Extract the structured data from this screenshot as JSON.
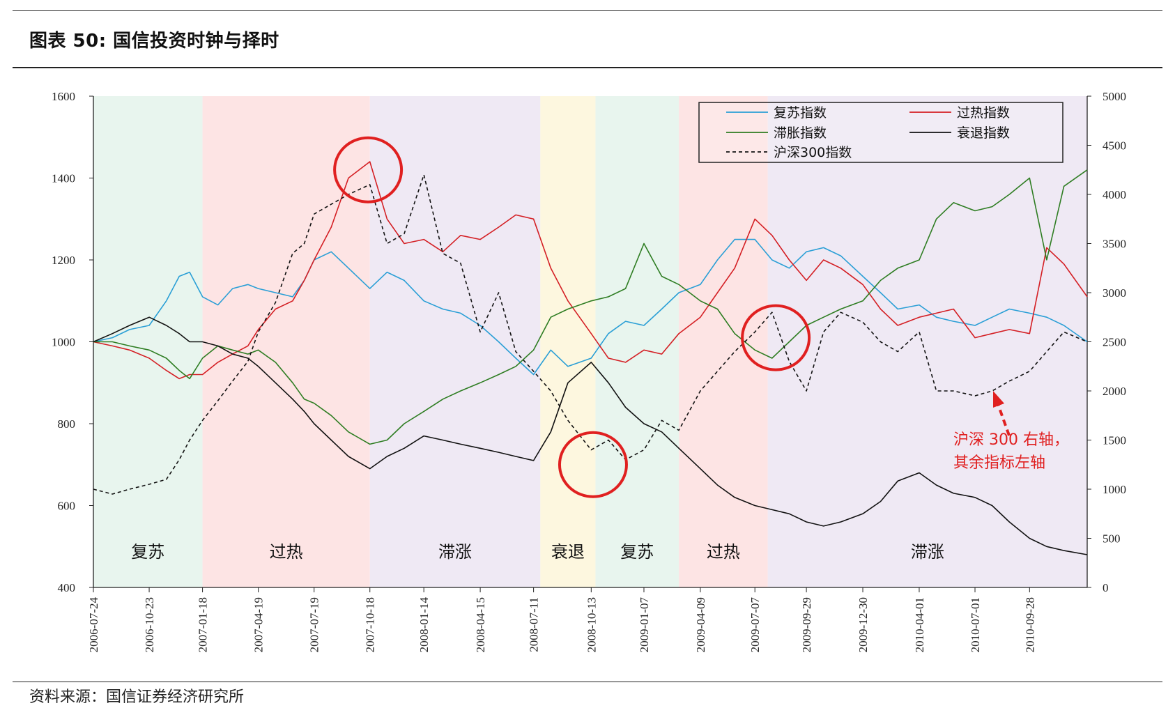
{
  "page": {
    "title": "图表 50:  国信投资时钟与择时",
    "source": "资料来源：国信证券经济研究所"
  },
  "chart_data": {
    "type": "line",
    "y_left": {
      "min": 400,
      "max": 1600,
      "ticks": [
        400,
        600,
        800,
        1000,
        1200,
        1400,
        1600
      ]
    },
    "y_right": {
      "min": 0,
      "max": 5000,
      "ticks": [
        0,
        500,
        1000,
        1500,
        2000,
        2500,
        3000,
        3500,
        4000,
        4500,
        5000
      ]
    },
    "x_range": [
      "2006-07-24",
      "2010-12-31"
    ],
    "x_ticks": [
      "2006-07-24",
      "2006-10-23",
      "2007-01-18",
      "2007-04-19",
      "2007-07-19",
      "2007-10-18",
      "2008-01-14",
      "2008-04-15",
      "2008-07-11",
      "2008-10-13",
      "2009-01-07",
      "2009-04-09",
      "2009-07-07",
      "2009-09-29",
      "2009-12-30",
      "2010-04-01",
      "2010-07-01",
      "2010-09-28"
    ],
    "phases": [
      {
        "label": "复苏",
        "start": "2006-07-24",
        "end": "2007-01-18",
        "color": "#e8f5ee"
      },
      {
        "label": "过热",
        "start": "2007-01-18",
        "end": "2007-10-18",
        "color": "#fde4e4"
      },
      {
        "label": "滞涨",
        "start": "2007-10-18",
        "end": "2008-07-22",
        "color": "#efe9f4"
      },
      {
        "label": "衰退",
        "start": "2008-07-22",
        "end": "2008-10-20",
        "color": "#fdf7df"
      },
      {
        "label": "复苏",
        "start": "2008-10-20",
        "end": "2009-03-05",
        "color": "#e8f5ee"
      },
      {
        "label": "过热",
        "start": "2009-03-05",
        "end": "2009-07-28",
        "color": "#fde4e4"
      },
      {
        "label": "滞涨",
        "start": "2009-07-28",
        "end": "2010-12-31",
        "color": "#efe9f4"
      }
    ],
    "legend": {
      "position": "top-right"
    },
    "series": [
      {
        "name": "复苏指数",
        "axis": "left",
        "color": "#2a9fd6",
        "style": "solid",
        "x": [
          "2006-07-24",
          "2006-08-24",
          "2006-09-21",
          "2006-10-23",
          "2006-11-20",
          "2006-12-11",
          "2006-12-28",
          "2007-01-18",
          "2007-02-12",
          "2007-03-08",
          "2007-04-02",
          "2007-04-19",
          "2007-05-17",
          "2007-06-14",
          "2007-07-03",
          "2007-07-19",
          "2007-08-16",
          "2007-09-13",
          "2007-10-18",
          "2007-11-15",
          "2007-12-13",
          "2008-01-14",
          "2008-02-14",
          "2008-03-14",
          "2008-04-15",
          "2008-05-15",
          "2008-06-12",
          "2008-07-11",
          "2008-08-08",
          "2008-09-05",
          "2008-10-13",
          "2008-11-10",
          "2008-12-08",
          "2009-01-07",
          "2009-02-05",
          "2009-03-05",
          "2009-04-09",
          "2009-05-07",
          "2009-06-04",
          "2009-07-07",
          "2009-08-04",
          "2009-09-01",
          "2009-09-29",
          "2009-10-27",
          "2009-11-24",
          "2009-12-30",
          "2010-01-28",
          "2010-02-25",
          "2010-04-01",
          "2010-04-29",
          "2010-05-27",
          "2010-07-01",
          "2010-07-29",
          "2010-08-26",
          "2010-09-28",
          "2010-10-26",
          "2010-11-23",
          "2010-12-31"
        ],
        "y": [
          1000,
          1010,
          1030,
          1040,
          1100,
          1160,
          1170,
          1110,
          1090,
          1130,
          1140,
          1130,
          1120,
          1110,
          1150,
          1200,
          1220,
          1180,
          1130,
          1170,
          1150,
          1100,
          1080,
          1070,
          1040,
          1000,
          960,
          920,
          980,
          940,
          960,
          1020,
          1050,
          1040,
          1080,
          1120,
          1140,
          1200,
          1250,
          1250,
          1200,
          1180,
          1220,
          1230,
          1210,
          1160,
          1120,
          1080,
          1090,
          1060,
          1050,
          1040,
          1060,
          1080,
          1070,
          1060,
          1040,
          1000
        ]
      },
      {
        "name": "过热指数",
        "axis": "left",
        "color": "#d41f24",
        "style": "solid",
        "x": [
          "2006-07-24",
          "2006-08-24",
          "2006-09-21",
          "2006-10-23",
          "2006-11-20",
          "2006-12-11",
          "2006-12-28",
          "2007-01-18",
          "2007-02-12",
          "2007-03-08",
          "2007-04-02",
          "2007-04-19",
          "2007-05-17",
          "2007-06-14",
          "2007-07-03",
          "2007-07-19",
          "2007-08-16",
          "2007-09-13",
          "2007-10-18",
          "2007-11-15",
          "2007-12-13",
          "2008-01-14",
          "2008-02-14",
          "2008-03-14",
          "2008-04-15",
          "2008-05-15",
          "2008-06-12",
          "2008-07-11",
          "2008-08-08",
          "2008-09-05",
          "2008-10-13",
          "2008-11-10",
          "2008-12-08",
          "2009-01-07",
          "2009-02-05",
          "2009-03-05",
          "2009-04-09",
          "2009-05-07",
          "2009-06-04",
          "2009-07-07",
          "2009-08-04",
          "2009-09-01",
          "2009-09-29",
          "2009-10-27",
          "2009-11-24",
          "2009-12-30",
          "2010-01-28",
          "2010-02-25",
          "2010-04-01",
          "2010-04-29",
          "2010-05-27",
          "2010-07-01",
          "2010-07-29",
          "2010-08-26",
          "2010-09-28",
          "2010-10-26",
          "2010-11-23",
          "2010-12-31"
        ],
        "y": [
          1000,
          990,
          980,
          960,
          930,
          910,
          920,
          920,
          950,
          970,
          990,
          1030,
          1080,
          1100,
          1150,
          1200,
          1280,
          1400,
          1440,
          1300,
          1240,
          1250,
          1220,
          1260,
          1250,
          1280,
          1310,
          1300,
          1180,
          1100,
          1020,
          960,
          950,
          980,
          970,
          1020,
          1060,
          1120,
          1180,
          1300,
          1260,
          1200,
          1150,
          1200,
          1180,
          1140,
          1080,
          1040,
          1060,
          1070,
          1080,
          1010,
          1020,
          1030,
          1020,
          1230,
          1190,
          1110
        ]
      },
      {
        "name": "滞胀指数",
        "axis": "left",
        "color": "#2e7d22",
        "style": "solid",
        "x": [
          "2006-07-24",
          "2006-08-24",
          "2006-09-21",
          "2006-10-23",
          "2006-11-20",
          "2006-12-11",
          "2006-12-28",
          "2007-01-18",
          "2007-02-12",
          "2007-03-08",
          "2007-04-02",
          "2007-04-19",
          "2007-05-17",
          "2007-06-14",
          "2007-07-03",
          "2007-07-19",
          "2007-08-16",
          "2007-09-13",
          "2007-10-18",
          "2007-11-15",
          "2007-12-13",
          "2008-01-14",
          "2008-02-14",
          "2008-03-14",
          "2008-04-15",
          "2008-05-15",
          "2008-06-12",
          "2008-07-11",
          "2008-08-08",
          "2008-09-05",
          "2008-10-13",
          "2008-11-10",
          "2008-12-08",
          "2009-01-07",
          "2009-02-05",
          "2009-03-05",
          "2009-04-09",
          "2009-05-07",
          "2009-06-04",
          "2009-07-07",
          "2009-08-04",
          "2009-09-01",
          "2009-09-29",
          "2009-10-27",
          "2009-11-24",
          "2009-12-30",
          "2010-01-28",
          "2010-02-25",
          "2010-04-01",
          "2010-04-29",
          "2010-05-27",
          "2010-07-01",
          "2010-07-29",
          "2010-08-26",
          "2010-09-28",
          "2010-10-26",
          "2010-11-23",
          "2010-12-31"
        ],
        "y": [
          1000,
          1000,
          990,
          980,
          960,
          930,
          910,
          960,
          990,
          980,
          970,
          980,
          950,
          900,
          860,
          850,
          820,
          780,
          750,
          760,
          800,
          830,
          860,
          880,
          900,
          920,
          940,
          980,
          1060,
          1080,
          1100,
          1110,
          1130,
          1240,
          1160,
          1140,
          1100,
          1080,
          1020,
          980,
          960,
          1000,
          1040,
          1060,
          1080,
          1100,
          1150,
          1180,
          1200,
          1300,
          1340,
          1320,
          1330,
          1360,
          1400,
          1200,
          1380,
          1420
        ]
      },
      {
        "name": "衰退指数",
        "axis": "left",
        "color": "#111111",
        "style": "solid",
        "x": [
          "2006-07-24",
          "2006-08-24",
          "2006-09-21",
          "2006-10-23",
          "2006-11-20",
          "2006-12-11",
          "2006-12-28",
          "2007-01-18",
          "2007-02-12",
          "2007-03-08",
          "2007-04-02",
          "2007-04-19",
          "2007-05-17",
          "2007-06-14",
          "2007-07-03",
          "2007-07-19",
          "2007-08-16",
          "2007-09-13",
          "2007-10-18",
          "2007-11-15",
          "2007-12-13",
          "2008-01-14",
          "2008-02-14",
          "2008-03-14",
          "2008-04-15",
          "2008-05-15",
          "2008-06-12",
          "2008-07-11",
          "2008-08-08",
          "2008-09-05",
          "2008-10-13",
          "2008-11-10",
          "2008-12-08",
          "2009-01-07",
          "2009-02-05",
          "2009-03-05",
          "2009-04-09",
          "2009-05-07",
          "2009-06-04",
          "2009-07-07",
          "2009-08-04",
          "2009-09-01",
          "2009-09-29",
          "2009-10-27",
          "2009-11-24",
          "2009-12-30",
          "2010-01-28",
          "2010-02-25",
          "2010-04-01",
          "2010-04-29",
          "2010-05-27",
          "2010-07-01",
          "2010-07-29",
          "2010-08-26",
          "2010-09-28",
          "2010-10-26",
          "2010-11-23",
          "2010-12-31"
        ],
        "y": [
          1000,
          1020,
          1040,
          1060,
          1040,
          1020,
          1000,
          1000,
          990,
          970,
          960,
          940,
          900,
          860,
          830,
          800,
          760,
          720,
          690,
          720,
          740,
          770,
          760,
          750,
          740,
          730,
          720,
          710,
          780,
          900,
          950,
          900,
          840,
          800,
          780,
          740,
          690,
          650,
          620,
          600,
          590,
          580,
          560,
          550,
          560,
          580,
          610,
          660,
          680,
          650,
          630,
          620,
          600,
          560,
          520,
          500,
          490,
          480
        ]
      },
      {
        "name": "沪深300指数",
        "axis": "right",
        "color": "#111111",
        "style": "dashed",
        "x": [
          "2006-07-24",
          "2006-08-24",
          "2006-09-21",
          "2006-10-23",
          "2006-11-20",
          "2006-12-11",
          "2006-12-28",
          "2007-01-18",
          "2007-02-12",
          "2007-03-08",
          "2007-04-02",
          "2007-04-19",
          "2007-05-17",
          "2007-06-14",
          "2007-07-03",
          "2007-07-19",
          "2007-08-16",
          "2007-09-13",
          "2007-10-18",
          "2007-11-15",
          "2007-12-13",
          "2008-01-14",
          "2008-02-14",
          "2008-03-14",
          "2008-04-15",
          "2008-05-15",
          "2008-06-12",
          "2008-07-11",
          "2008-08-08",
          "2008-09-05",
          "2008-10-13",
          "2008-11-10",
          "2008-12-08",
          "2009-01-07",
          "2009-02-05",
          "2009-03-05",
          "2009-04-09",
          "2009-05-07",
          "2009-06-04",
          "2009-07-07",
          "2009-08-04",
          "2009-09-01",
          "2009-09-29",
          "2009-10-27",
          "2009-11-24",
          "2009-12-30",
          "2010-01-28",
          "2010-02-25",
          "2010-04-01",
          "2010-04-29",
          "2010-05-27",
          "2010-07-01",
          "2010-07-29",
          "2010-08-26",
          "2010-09-28",
          "2010-10-26",
          "2010-11-23",
          "2010-12-31"
        ],
        "y": [
          1000,
          950,
          1000,
          1050,
          1100,
          1300,
          1500,
          1700,
          1900,
          2100,
          2300,
          2600,
          2900,
          3400,
          3500,
          3800,
          3900,
          4000,
          4100,
          3500,
          3600,
          4200,
          3400,
          3300,
          2600,
          3000,
          2400,
          2200,
          2000,
          1700,
          1400,
          1500,
          1300,
          1400,
          1700,
          1600,
          2000,
          2200,
          2400,
          2600,
          2800,
          2300,
          2000,
          2600,
          2800,
          2700,
          2500,
          2400,
          2600,
          2000,
          2000,
          1950,
          2000,
          2100,
          2200,
          2400,
          2600,
          2500
        ]
      }
    ],
    "annotations": [
      {
        "text": "沪深 300 右轴，",
        "color": "#e02020"
      },
      {
        "text": "其余指标左轴",
        "color": "#e02020"
      }
    ],
    "highlight_circles": [
      {
        "date": "2007-10-15",
        "y_left": 1420,
        "color": "#e02020"
      },
      {
        "date": "2008-10-16",
        "y_left": 700,
        "color": "#e02020"
      },
      {
        "date": "2009-08-10",
        "y_left": 1010,
        "color": "#e02020"
      }
    ]
  }
}
